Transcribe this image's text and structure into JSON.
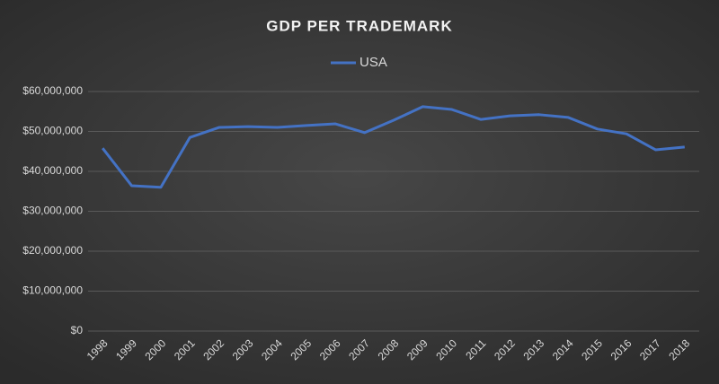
{
  "chart_data": {
    "type": "line",
    "title": "GDP PER TRADEMARK",
    "categories": [
      "1998",
      "1999",
      "2000",
      "2001",
      "2002",
      "2003",
      "2004",
      "2005",
      "2006",
      "2007",
      "2008",
      "2009",
      "2010",
      "2011",
      "2012",
      "2013",
      "2014",
      "2015",
      "2016",
      "2017",
      "2018"
    ],
    "series": [
      {
        "name": "USA",
        "color": "#4472c4",
        "values": [
          45800000,
          36400000,
          36000000,
          48500000,
          51000000,
          51200000,
          51000000,
          51500000,
          51900000,
          49700000,
          52800000,
          56200000,
          55500000,
          53000000,
          53900000,
          54200000,
          53500000,
          50600000,
          49400000,
          45400000,
          46100000
        ]
      }
    ],
    "ylim": [
      0,
      60000000
    ],
    "yticks": [
      {
        "value": 0,
        "label": "$0"
      },
      {
        "value": 10000000,
        "label": "$10,000,000"
      },
      {
        "value": 20000000,
        "label": "$20,000,000"
      },
      {
        "value": 30000000,
        "label": "$30,000,000"
      },
      {
        "value": 40000000,
        "label": "$40,000,000"
      },
      {
        "value": 50000000,
        "label": "$50,000,000"
      },
      {
        "value": 60000000,
        "label": "$60,000,000"
      }
    ],
    "grid": true,
    "legend": "top"
  }
}
